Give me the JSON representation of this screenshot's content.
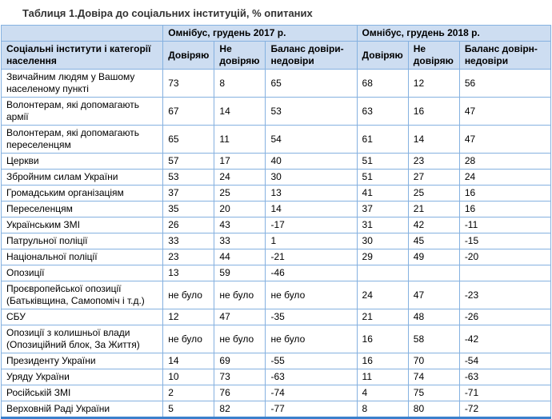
{
  "title": "Таблиця 1.Довіра до соціальних інституцій, % опитаних",
  "colors": {
    "header_bg": "#cdddf1",
    "grid_border": "#85b1e0",
    "outer_border": "#3b80cc"
  },
  "table": {
    "row_header": "Соціальні інститути і категорії населення",
    "group_headers": [
      "Омнібус, грудень 2017 р.",
      "Омнібус, грудень 2018 р."
    ],
    "sub_headers_2017": [
      "Довіряю",
      "Не довіряю",
      "Баланс довіри-недовіри"
    ],
    "sub_headers_2018": [
      "Довіряю",
      "Не довіряю",
      "Баланс довірн-недовіри"
    ],
    "rows": [
      [
        "Звичайним людям у Вашому населеному пункті",
        "73",
        "8",
        "65",
        "68",
        "12",
        "56"
      ],
      [
        "Волонтерам, які допомагають армії",
        "67",
        "14",
        "53",
        "63",
        "16",
        "47"
      ],
      [
        "Волонтерам, які допомагають переселенцям",
        "65",
        "11",
        "54",
        "61",
        "14",
        "47"
      ],
      [
        "Церкви",
        "57",
        "17",
        "40",
        "51",
        "23",
        "28"
      ],
      [
        "Збройним силам України",
        "53",
        "24",
        "30",
        "51",
        "27",
        "24"
      ],
      [
        "Громадським організаціям",
        "37",
        "25",
        "13",
        "41",
        "25",
        "16"
      ],
      [
        "Переселенцям",
        "35",
        "20",
        "14",
        "37",
        "21",
        "16"
      ],
      [
        "Українським ЗМІ",
        "26",
        "43",
        "-17",
        "31",
        "42",
        "-11"
      ],
      [
        "Патрульної поліції",
        "33",
        "33",
        "1",
        "30",
        "45",
        "-15"
      ],
      [
        "Національної поліції",
        "23",
        "44",
        "-21",
        "29",
        "49",
        "-20"
      ],
      [
        "Опозиції",
        "13",
        "59",
        "-46",
        "",
        "",
        ""
      ],
      [
        "Проєвропейської опозиції (Батьківщина, Самопоміч і т.д.)",
        "не було",
        "не було",
        "не було",
        "24",
        "47",
        "-23"
      ],
      [
        "СБУ",
        "12",
        "47",
        "-35",
        "21",
        "48",
        "-26"
      ],
      [
        "Опозиції з колишньої влади (Опозиційний блок, За Життя)",
        "не було",
        "не було",
        "не було",
        "16",
        "58",
        "-42"
      ],
      [
        "Президенту України",
        "14",
        "69",
        "-55",
        "16",
        "70",
        "-54"
      ],
      [
        "Уряду України",
        "10",
        "73",
        "-63",
        "11",
        "74",
        "-63"
      ],
      [
        "Російській ЗМІ",
        "2",
        "76",
        "-74",
        "4",
        "75",
        "-71"
      ],
      [
        "Верховній Раді України",
        "5",
        "82",
        "-77",
        "8",
        "80",
        "-72"
      ]
    ]
  }
}
